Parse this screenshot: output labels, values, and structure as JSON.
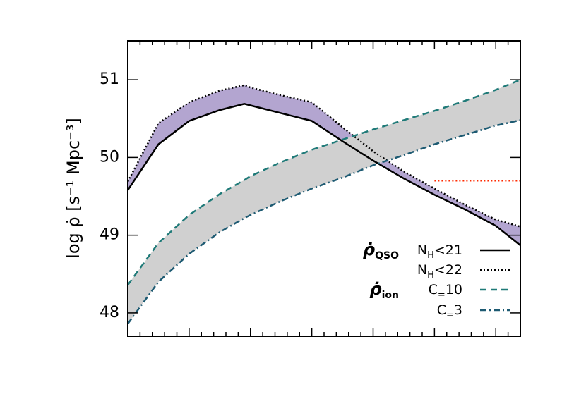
{
  "chart_data": {
    "type": "line",
    "ylabel": "log ρ̇ [s⁻¹ Mpc⁻³]",
    "xlim": [
      0,
      6.4
    ],
    "ylim": [
      47.7,
      51.5
    ],
    "yticks": [
      48,
      49,
      50,
      51
    ],
    "x": [
      0,
      0.5,
      1,
      1.5,
      1.9,
      2,
      2.5,
      3,
      3.5,
      4,
      4.5,
      5,
      5.5,
      6,
      6.4
    ],
    "series": [
      {
        "name": "NH<21",
        "color": "#000000",
        "dash": "solid",
        "values": [
          49.58,
          50.17,
          50.47,
          50.61,
          50.69,
          50.67,
          50.57,
          50.47,
          50.21,
          49.96,
          49.73,
          49.52,
          49.33,
          49.12,
          48.87
        ]
      },
      {
        "name": "NH<22",
        "color": "#000000",
        "dash": "dotted",
        "values": [
          49.69,
          50.44,
          50.71,
          50.86,
          50.93,
          50.9,
          50.8,
          50.71,
          50.39,
          50.08,
          49.82,
          49.6,
          49.39,
          49.2,
          49.11
        ]
      },
      {
        "name": "C=10",
        "color": "#1f7a78",
        "dash": "dashed",
        "values": [
          48.36,
          48.9,
          49.26,
          49.53,
          49.71,
          49.76,
          49.94,
          50.1,
          50.23,
          50.36,
          50.48,
          50.6,
          50.73,
          50.87,
          51.0
        ]
      },
      {
        "name": "C=3",
        "color": "#1d5a72",
        "dash": "dashdot",
        "values": [
          47.86,
          48.4,
          48.76,
          49.04,
          49.22,
          49.26,
          49.44,
          49.6,
          49.74,
          49.9,
          50.03,
          50.17,
          50.29,
          50.41,
          50.48
        ]
      }
    ],
    "bands": [
      {
        "between": [
          0,
          1
        ],
        "fill": "#b3a5d0"
      },
      {
        "between": [
          2,
          3
        ],
        "fill": "#d0d0d0"
      }
    ],
    "legend_groups": [
      {
        "label": "ρ̇QSO",
        "series": [
          0,
          1
        ]
      },
      {
        "label": "ρ̇ion",
        "series": [
          2,
          3
        ]
      }
    ],
    "reference_line": {
      "x": [
        5,
        6.4
      ],
      "y": 49.7,
      "color": "#ff2a00"
    },
    "legend": "lower right"
  }
}
